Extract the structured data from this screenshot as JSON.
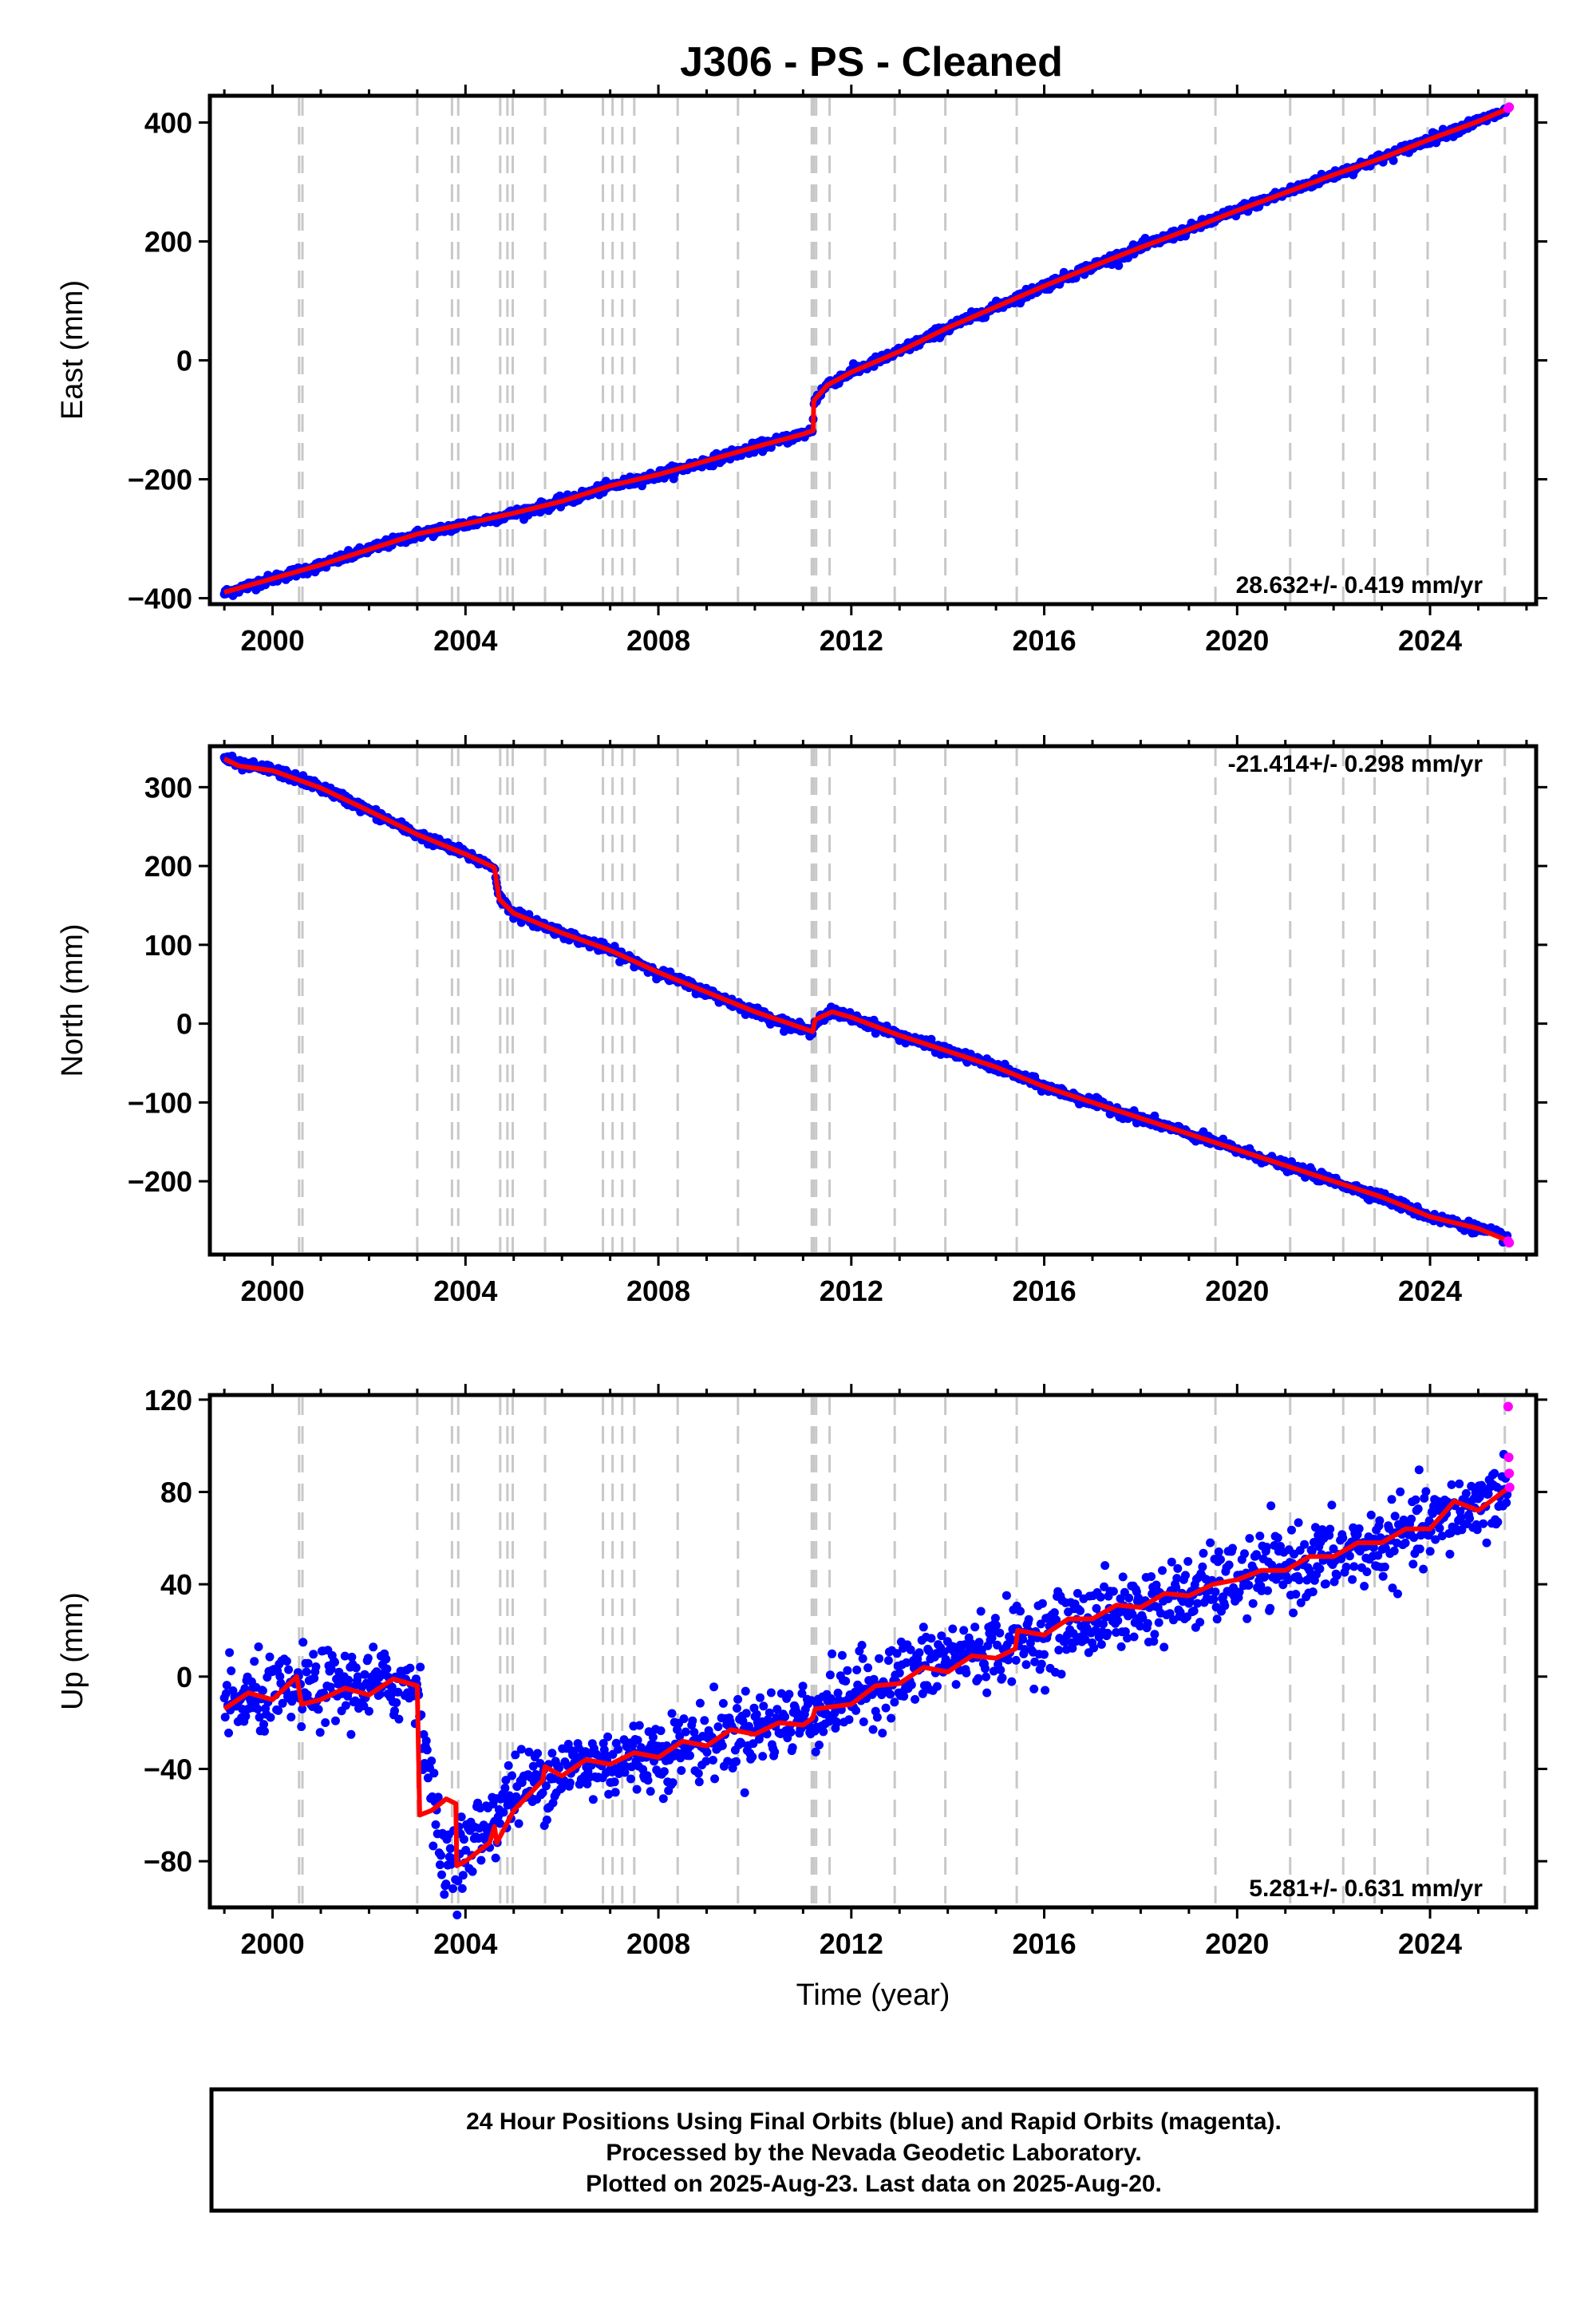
{
  "title": "J306  - PS - Cleaned",
  "footer": {
    "lines": [
      "24 Hour Positions Using Final Orbits (blue) and Rapid Orbits (magenta).",
      "Processed by the Nevada Geodetic Laboratory.",
      "Plotted on 2025-Aug-23. Last data on 2025-Aug-20."
    ]
  },
  "colors": {
    "final_orbits": "#0000ff",
    "rapid_orbits": "#ff00ff",
    "model": "#ff0000",
    "event_lines": "#c8c8c8",
    "frame": "#000000"
  },
  "chart_data": [
    {
      "type": "scatter",
      "name": "east",
      "title": "J306  - PS - Cleaned",
      "xlabel": "",
      "ylabel": "East (mm)",
      "xlim": [
        1998.7,
        2026.2
      ],
      "ylim": [
        -410,
        445
      ],
      "xticks": [
        2000,
        2004,
        2008,
        2012,
        2016,
        2020,
        2024
      ],
      "yticks": [
        -400,
        -200,
        0,
        200,
        400
      ],
      "ytick_labels": [
        "−400",
        "−200",
        "0",
        "200",
        "400"
      ],
      "grid": false,
      "rate_label": "28.632+/- 0.419 mm/yr",
      "rate_position": "bottom-right",
      "noise": 4,
      "series": [
        {
          "name": "Final Orbits",
          "color": "blue",
          "points": [
            [
              1999.0,
              -392
            ],
            [
              2000.0,
              -367
            ],
            [
              2001.0,
              -345
            ],
            [
              2002.0,
              -318
            ],
            [
              2003.0,
              -293
            ],
            [
              2004.0,
              -276
            ],
            [
              2005.0,
              -258
            ],
            [
              2006.0,
              -238
            ],
            [
              2007.0,
              -212
            ],
            [
              2008.0,
              -193
            ],
            [
              2009.0,
              -170
            ],
            [
              2010.0,
              -147
            ],
            [
              2011.0,
              -124
            ],
            [
              2011.2,
              -118
            ],
            [
              2011.22,
              -70
            ],
            [
              2011.5,
              -40
            ],
            [
              2012.0,
              -20
            ],
            [
              2013.0,
              15
            ],
            [
              2014.0,
              55
            ],
            [
              2015.0,
              90
            ],
            [
              2016.0,
              125
            ],
            [
              2017.0,
              158
            ],
            [
              2018.0,
              190
            ],
            [
              2019.0,
              220
            ],
            [
              2020.0,
              252
            ],
            [
              2021.0,
              282
            ],
            [
              2022.0,
              312
            ],
            [
              2023.0,
              340
            ],
            [
              2024.0,
              372
            ],
            [
              2025.0,
              402
            ],
            [
              2025.6,
              420
            ]
          ]
        },
        {
          "name": "Rapid Orbits",
          "color": "magenta",
          "points": [
            [
              2025.62,
              424
            ],
            [
              2025.64,
              426
            ]
          ]
        },
        {
          "name": "model",
          "color": "red",
          "points": [
            [
              1999.0,
              -390
            ],
            [
              2000.0,
              -367
            ],
            [
              2001.0,
              -344
            ],
            [
              2002.0,
              -318
            ],
            [
              2003.0,
              -292
            ],
            [
              2004.0,
              -275
            ],
            [
              2005.0,
              -257
            ],
            [
              2006.0,
              -237
            ],
            [
              2007.0,
              -211
            ],
            [
              2008.0,
              -192
            ],
            [
              2009.0,
              -169
            ],
            [
              2010.0,
              -146
            ],
            [
              2011.0,
              -124
            ],
            [
              2011.21,
              -118
            ],
            [
              2011.22,
              -68
            ],
            [
              2011.5,
              -42
            ],
            [
              2012.0,
              -20
            ],
            [
              2013.0,
              15
            ],
            [
              2014.0,
              55
            ],
            [
              2015.0,
              90
            ],
            [
              2016.0,
              125
            ],
            [
              2017.0,
              158
            ],
            [
              2018.0,
              190
            ],
            [
              2019.0,
              220
            ],
            [
              2020.0,
              252
            ],
            [
              2021.0,
              282
            ],
            [
              2022.0,
              312
            ],
            [
              2023.0,
              340
            ],
            [
              2024.0,
              372
            ],
            [
              2025.0,
              402
            ],
            [
              2025.64,
              424
            ]
          ]
        }
      ]
    },
    {
      "type": "scatter",
      "name": "north",
      "xlabel": "",
      "ylabel": "North (mm)",
      "xlim": [
        1998.7,
        2026.2
      ],
      "ylim": [
        -293,
        352
      ],
      "xticks": [
        2000,
        2004,
        2008,
        2012,
        2016,
        2020,
        2024
      ],
      "yticks": [
        -200,
        -100,
        0,
        100,
        200,
        300
      ],
      "ytick_labels": [
        "−200",
        "−100",
        "0",
        "100",
        "200",
        "300"
      ],
      "grid": false,
      "rate_label": "-21.414+/- 0.298 mm/yr",
      "rate_position": "top-right",
      "noise": 3,
      "series": [
        {
          "name": "Final Orbits",
          "color": "blue",
          "points": [
            [
              1999.0,
              338
            ],
            [
              1999.3,
              328
            ],
            [
              2000.0,
              322
            ],
            [
              2001.0,
              300
            ],
            [
              2002.0,
              270
            ],
            [
              2003.0,
              240
            ],
            [
              2004.0,
              215
            ],
            [
              2004.6,
              198
            ],
            [
              2004.7,
              160
            ],
            [
              2005.0,
              140
            ],
            [
              2006.0,
              115
            ],
            [
              2007.0,
              93
            ],
            [
              2008.0,
              65
            ],
            [
              2009.0,
              40
            ],
            [
              2010.0,
              15
            ],
            [
              2011.2,
              -12
            ],
            [
              2011.25,
              5
            ],
            [
              2011.6,
              15
            ],
            [
              2012.0,
              8
            ],
            [
              2013.0,
              -15
            ],
            [
              2014.0,
              -35
            ],
            [
              2015.0,
              -55
            ],
            [
              2016.0,
              -80
            ],
            [
              2017.0,
              -100
            ],
            [
              2018.0,
              -120
            ],
            [
              2019.0,
              -140
            ],
            [
              2020.0,
              -160
            ],
            [
              2021.0,
              -180
            ],
            [
              2022.0,
              -200
            ],
            [
              2023.0,
              -220
            ],
            [
              2024.0,
              -245
            ],
            [
              2025.0,
              -260
            ],
            [
              2025.6,
              -272
            ]
          ]
        },
        {
          "name": "Rapid Orbits",
          "color": "magenta",
          "points": [
            [
              2025.62,
              -276
            ],
            [
              2025.64,
              -278
            ]
          ]
        },
        {
          "name": "model",
          "color": "red",
          "points": [
            [
              1999.0,
              336
            ],
            [
              1999.3,
              327
            ],
            [
              2000.0,
              321
            ],
            [
              2001.0,
              299
            ],
            [
              2002.0,
              270
            ],
            [
              2003.0,
              240
            ],
            [
              2004.0,
              215
            ],
            [
              2004.6,
              198
            ],
            [
              2004.7,
              158
            ],
            [
              2005.0,
              140
            ],
            [
              2006.0,
              115
            ],
            [
              2007.0,
              93
            ],
            [
              2008.0,
              65
            ],
            [
              2009.0,
              40
            ],
            [
              2010.0,
              15
            ],
            [
              2011.2,
              -10
            ],
            [
              2011.25,
              5
            ],
            [
              2011.6,
              15
            ],
            [
              2012.0,
              8
            ],
            [
              2013.0,
              -15
            ],
            [
              2014.0,
              -35
            ],
            [
              2015.0,
              -55
            ],
            [
              2016.0,
              -80
            ],
            [
              2017.0,
              -100
            ],
            [
              2018.0,
              -120
            ],
            [
              2019.0,
              -140
            ],
            [
              2020.0,
              -160
            ],
            [
              2021.0,
              -180
            ],
            [
              2022.0,
              -200
            ],
            [
              2023.0,
              -220
            ],
            [
              2024.0,
              -245
            ],
            [
              2025.0,
              -260
            ],
            [
              2025.64,
              -276
            ]
          ]
        }
      ]
    },
    {
      "type": "scatter",
      "name": "up",
      "xlabel": "Time (year)",
      "ylabel": "Up (mm)",
      "xlim": [
        1998.7,
        2026.2
      ],
      "ylim": [
        -100,
        122
      ],
      "xticks": [
        2000,
        2004,
        2008,
        2012,
        2016,
        2020,
        2024
      ],
      "yticks": [
        -80,
        -40,
        0,
        40,
        80,
        120
      ],
      "ytick_labels": [
        "−80",
        "−40",
        "0",
        "40",
        "80",
        "120"
      ],
      "grid": false,
      "rate_label": "5.281+/- 0.631 mm/yr",
      "rate_position": "bottom-right",
      "noise": 8,
      "series": [
        {
          "name": "Final Orbits",
          "color": "blue",
          "points": [
            [
              1999.0,
              -13
            ],
            [
              2000.0,
              -8
            ],
            [
              2001.0,
              -5
            ],
            [
              2002.0,
              -4
            ],
            [
              2003.0,
              -3
            ],
            [
              2003.5,
              -80
            ],
            [
              2004.0,
              -75
            ],
            [
              2005.0,
              -50
            ],
            [
              2006.0,
              -40
            ],
            [
              2007.0,
              -37
            ],
            [
              2008.0,
              -33
            ],
            [
              2009.0,
              -28
            ],
            [
              2010.0,
              -22
            ],
            [
              2011.0,
              -18
            ],
            [
              2012.0,
              -8
            ],
            [
              2013.0,
              0
            ],
            [
              2014.0,
              8
            ],
            [
              2015.0,
              13
            ],
            [
              2016.0,
              18
            ],
            [
              2017.0,
              25
            ],
            [
              2018.0,
              30
            ],
            [
              2019.0,
              35
            ],
            [
              2020.0,
              42
            ],
            [
              2021.0,
              47
            ],
            [
              2022.0,
              52
            ],
            [
              2023.0,
              57
            ],
            [
              2024.0,
              65
            ],
            [
              2025.0,
              75
            ],
            [
              2025.6,
              80
            ]
          ]
        },
        {
          "name": "Rapid Orbits",
          "color": "magenta",
          "points": [
            [
              2025.62,
              117
            ],
            [
              2025.63,
              95
            ],
            [
              2025.64,
              88
            ],
            [
              2025.65,
              82
            ]
          ]
        },
        {
          "name": "model",
          "color": "red",
          "points": [
            [
              1999.0,
              -14
            ],
            [
              1999.5,
              -7
            ],
            [
              2000.0,
              -10
            ],
            [
              2000.5,
              0
            ],
            [
              2000.6,
              -12
            ],
            [
              2001.0,
              -10
            ],
            [
              2001.5,
              -5
            ],
            [
              2002.0,
              -8
            ],
            [
              2002.5,
              -1
            ],
            [
              2003.0,
              -4
            ],
            [
              2003.05,
              -60
            ],
            [
              2003.3,
              -58
            ],
            [
              2003.6,
              -53
            ],
            [
              2003.8,
              -55
            ],
            [
              2003.82,
              -82
            ],
            [
              2004.0,
              -80
            ],
            [
              2004.5,
              -72
            ],
            [
              2004.6,
              -65
            ],
            [
              2004.65,
              -72
            ],
            [
              2005.0,
              -58
            ],
            [
              2005.6,
              -45
            ],
            [
              2005.65,
              -39
            ],
            [
              2006.0,
              -43
            ],
            [
              2006.5,
              -36
            ],
            [
              2007.0,
              -38
            ],
            [
              2007.5,
              -33
            ],
            [
              2008.0,
              -35
            ],
            [
              2008.5,
              -28
            ],
            [
              2009.0,
              -30
            ],
            [
              2009.5,
              -23
            ],
            [
              2010.0,
              -25
            ],
            [
              2010.5,
              -20
            ],
            [
              2011.0,
              -21
            ],
            [
              2011.2,
              -18
            ],
            [
              2011.25,
              -14
            ],
            [
              2012.0,
              -12
            ],
            [
              2012.5,
              -4
            ],
            [
              2013.0,
              -3
            ],
            [
              2013.5,
              4
            ],
            [
              2014.0,
              2
            ],
            [
              2014.5,
              9
            ],
            [
              2015.0,
              8
            ],
            [
              2015.4,
              12
            ],
            [
              2015.45,
              20
            ],
            [
              2016.0,
              18
            ],
            [
              2016.5,
              25
            ],
            [
              2017.0,
              25
            ],
            [
              2017.5,
              31
            ],
            [
              2018.0,
              30
            ],
            [
              2018.5,
              36
            ],
            [
              2019.0,
              35
            ],
            [
              2019.5,
              40
            ],
            [
              2020.0,
              42
            ],
            [
              2020.5,
              46
            ],
            [
              2021.0,
              46
            ],
            [
              2021.5,
              52
            ],
            [
              2022.0,
              52
            ],
            [
              2022.5,
              58
            ],
            [
              2023.0,
              58
            ],
            [
              2023.5,
              64
            ],
            [
              2024.0,
              64
            ],
            [
              2024.5,
              76
            ],
            [
              2025.0,
              72
            ],
            [
              2025.64,
              82
            ]
          ]
        }
      ]
    }
  ],
  "event_lines": [
    2000.55,
    2000.62,
    2003.0,
    2003.72,
    2003.85,
    2004.72,
    2004.87,
    2004.98,
    2005.65,
    2006.85,
    2007.05,
    2007.25,
    2007.5,
    2008.4,
    2009.65,
    2011.18,
    2011.22,
    2011.27,
    2011.55,
    2012.9,
    2013.95,
    2015.43,
    2019.55,
    2021.1,
    2022.2,
    2022.85,
    2023.95,
    2025.55
  ]
}
